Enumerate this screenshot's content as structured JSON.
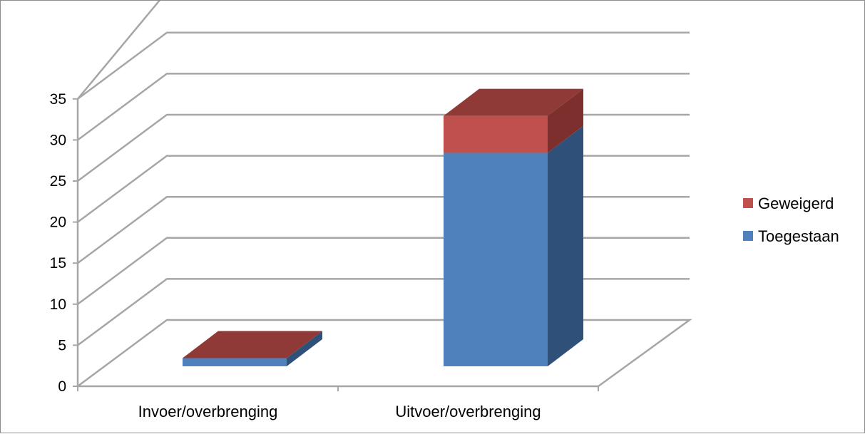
{
  "chart_data": {
    "type": "bar",
    "stacked": true,
    "three_d": true,
    "categories": [
      "Invoer/overbrenging",
      "Uitvoer/overbrenging"
    ],
    "series": [
      {
        "name": "Toegestaan",
        "values": [
          1,
          26
        ],
        "color": "#4f81bd",
        "side_color": "#2f5078"
      },
      {
        "name": "Geweigerd",
        "values": [
          0,
          4.5
        ],
        "color": "#c0504d",
        "side_color": "#7d2f2d",
        "top_color": "#8f3a37"
      }
    ],
    "y_ticks": [
      "0",
      "5",
      "10",
      "15",
      "20",
      "25",
      "30",
      "35"
    ],
    "ylim": [
      0,
      35
    ],
    "grid": true,
    "legend_position": "right",
    "title": "",
    "xlabel": "",
    "ylabel": ""
  }
}
